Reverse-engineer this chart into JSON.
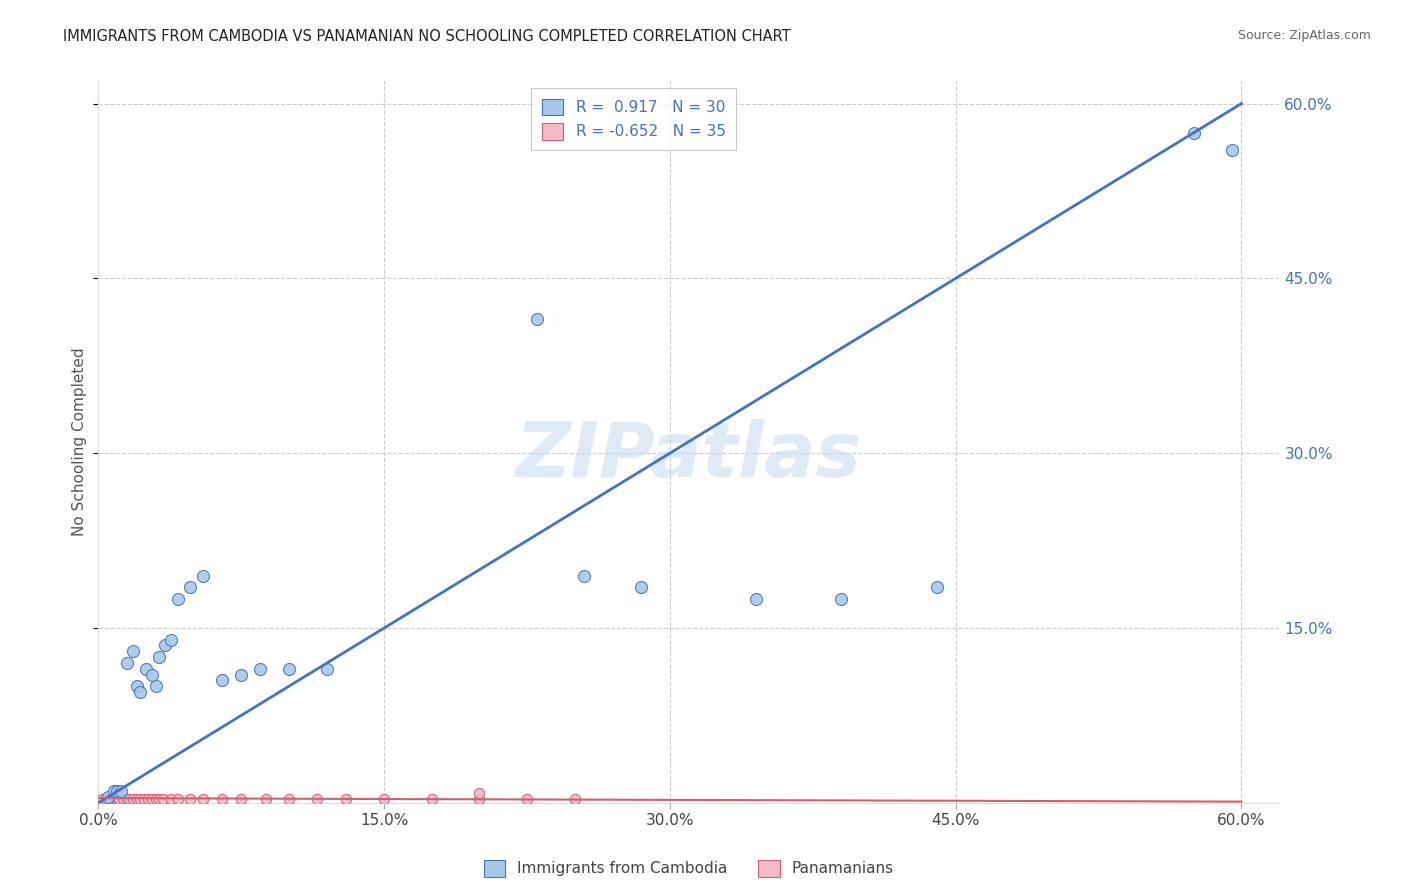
{
  "title": "IMMIGRANTS FROM CAMBODIA VS PANAMANIAN NO SCHOOLING COMPLETED CORRELATION CHART",
  "source": "Source: ZipAtlas.com",
  "ylabel": "No Schooling Completed",
  "legend_label1": "Immigrants from Cambodia",
  "legend_label2": "Panamanians",
  "r1": 0.917,
  "n1": 30,
  "r2": -0.652,
  "n2": 35,
  "xlim": [
    0.0,
    0.62
  ],
  "ylim": [
    0.0,
    0.62
  ],
  "color_blue": "#a8c8e8",
  "color_pink": "#f4b8c8",
  "line_blue": "#4472c4",
  "line_pink": "#d06070",
  "watermark": "ZIPatlas",
  "cambodia_x": [
    0.005,
    0.008,
    0.01,
    0.012,
    0.015,
    0.018,
    0.02,
    0.022,
    0.025,
    0.028,
    0.03,
    0.032,
    0.035,
    0.038,
    0.042,
    0.048,
    0.055,
    0.065,
    0.075,
    0.085,
    0.1,
    0.12,
    0.23,
    0.255,
    0.285,
    0.345,
    0.39,
    0.44,
    0.575,
    0.595
  ],
  "cambodia_y": [
    0.005,
    0.01,
    0.01,
    0.01,
    0.12,
    0.13,
    0.1,
    0.095,
    0.115,
    0.11,
    0.1,
    0.125,
    0.135,
    0.14,
    0.175,
    0.185,
    0.195,
    0.105,
    0.11,
    0.115,
    0.115,
    0.115,
    0.415,
    0.195,
    0.185,
    0.175,
    0.175,
    0.185,
    0.575,
    0.56
  ],
  "panama_x": [
    0.002,
    0.004,
    0.006,
    0.007,
    0.008,
    0.01,
    0.011,
    0.013,
    0.015,
    0.016,
    0.018,
    0.02,
    0.022,
    0.024,
    0.026,
    0.028,
    0.03,
    0.032,
    0.034,
    0.038,
    0.042,
    0.048,
    0.055,
    0.065,
    0.075,
    0.088,
    0.1,
    0.115,
    0.13,
    0.15,
    0.175,
    0.2,
    0.225,
    0.25,
    0.2
  ],
  "panama_y": [
    0.003,
    0.003,
    0.003,
    0.003,
    0.004,
    0.003,
    0.003,
    0.003,
    0.003,
    0.003,
    0.003,
    0.003,
    0.003,
    0.003,
    0.003,
    0.003,
    0.003,
    0.003,
    0.003,
    0.003,
    0.003,
    0.003,
    0.003,
    0.003,
    0.003,
    0.003,
    0.003,
    0.003,
    0.003,
    0.003,
    0.003,
    0.003,
    0.003,
    0.003,
    0.008
  ],
  "blue_line_x": [
    0.0,
    0.6
  ],
  "blue_line_y": [
    0.0,
    0.6
  ],
  "pink_line_x": [
    0.0,
    0.6
  ],
  "pink_line_y": [
    0.004,
    0.001
  ]
}
